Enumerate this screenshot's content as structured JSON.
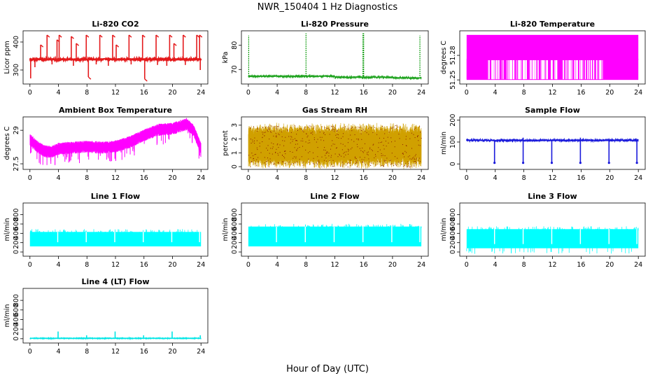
{
  "figure": {
    "title": "NWR_150404  1 Hz Diagnostics",
    "xlabel": "Hour of Day (UTC)"
  },
  "chart_data": [
    {
      "type": "line",
      "title": "Li-820 CO2",
      "ylabel": "Licor ppm",
      "color": "#e41a1c",
      "xlim": [
        0,
        24
      ],
      "xticks": [
        0,
        4,
        8,
        12,
        16,
        20,
        24
      ],
      "ylim": [
        250,
        440
      ],
      "yticks": [
        300,
        400
      ],
      "baseline": 338,
      "noise": 4,
      "spikes": [
        {
          "x": 1.5,
          "y": 390
        },
        {
          "x": 2.4,
          "y": 425
        },
        {
          "x": 3.8,
          "y": 408
        },
        {
          "x": 4.1,
          "y": 425
        },
        {
          "x": 5.8,
          "y": 420
        },
        {
          "x": 6.5,
          "y": 395
        },
        {
          "x": 7.9,
          "y": 425
        },
        {
          "x": 8.2,
          "y": 275
        },
        {
          "x": 9.8,
          "y": 425
        },
        {
          "x": 11.6,
          "y": 425
        },
        {
          "x": 12.1,
          "y": 390
        },
        {
          "x": 13.9,
          "y": 425
        },
        {
          "x": 15.8,
          "y": 425
        },
        {
          "x": 16.1,
          "y": 268
        },
        {
          "x": 17.7,
          "y": 425
        },
        {
          "x": 19.6,
          "y": 425
        },
        {
          "x": 20.2,
          "y": 395
        },
        {
          "x": 21.5,
          "y": 425
        },
        {
          "x": 23.4,
          "y": 425
        },
        {
          "x": 23.8,
          "y": 425
        }
      ],
      "dips": [
        {
          "x": 0.1,
          "y": 270
        },
        {
          "x": 0.7,
          "y": 310
        },
        {
          "x": 3.1,
          "y": 320
        },
        {
          "x": 6.1,
          "y": 315
        },
        {
          "x": 9.3,
          "y": 320
        },
        {
          "x": 11.0,
          "y": 315
        },
        {
          "x": 14.2,
          "y": 320
        },
        {
          "x": 17.9,
          "y": 318
        },
        {
          "x": 19.2,
          "y": 315
        },
        {
          "x": 21.8,
          "y": 318
        },
        {
          "x": 23.9,
          "y": 300
        }
      ]
    },
    {
      "type": "line",
      "title": "Li-820 Pressure",
      "ylabel": "kPa",
      "color": "#1fa31f",
      "xlim": [
        0,
        24
      ],
      "xticks": [
        0,
        4,
        8,
        12,
        16,
        20,
        24
      ],
      "ylim": [
        64,
        86
      ],
      "yticks": [
        70,
        80
      ],
      "baseline": 67.2,
      "noise": 0.25,
      "spikes": [
        {
          "x": 0.05,
          "y": 84
        },
        {
          "x": 8.0,
          "y": 85
        },
        {
          "x": 15.9,
          "y": 85
        },
        {
          "x": 16.0,
          "y": 85
        },
        {
          "x": 23.8,
          "y": 84
        }
      ],
      "dips": []
    },
    {
      "type": "line",
      "title": "Li-820 Temperature",
      "ylabel": "degrees C",
      "color": "#ff00ff",
      "xlim": [
        0,
        24
      ],
      "xticks": [
        0,
        4,
        8,
        12,
        16,
        20,
        24
      ],
      "ylim": [
        51.245,
        51.31
      ],
      "yticks": [
        51.25,
        51.28
      ],
      "levels": [
        51.25,
        51.275,
        51.305
      ],
      "band_high": [
        0,
        24
      ],
      "band_mid": [
        0,
        19.5
      ]
    },
    {
      "type": "line",
      "title": "Ambient Box Temperature",
      "ylabel": "degrees C",
      "color": "#ff00ff",
      "xlim": [
        0,
        24
      ],
      "xticks": [
        0,
        4,
        8,
        12,
        16,
        20,
        24
      ],
      "ylim": [
        27.25,
        29.6
      ],
      "yticks": [
        27.5,
        29.0
      ],
      "profile": [
        {
          "x": 0,
          "y": 28.6
        },
        {
          "x": 1,
          "y": 28.3
        },
        {
          "x": 2,
          "y": 28.1
        },
        {
          "x": 3,
          "y": 28.05
        },
        {
          "x": 4,
          "y": 28.2
        },
        {
          "x": 6,
          "y": 28.25
        },
        {
          "x": 8,
          "y": 28.3
        },
        {
          "x": 10,
          "y": 28.25
        },
        {
          "x": 12,
          "y": 28.3
        },
        {
          "x": 14,
          "y": 28.5
        },
        {
          "x": 16,
          "y": 28.8
        },
        {
          "x": 18,
          "y": 29.05
        },
        {
          "x": 20,
          "y": 29.1
        },
        {
          "x": 21,
          "y": 29.2
        },
        {
          "x": 22,
          "y": 29.3
        },
        {
          "x": 23,
          "y": 29.0
        },
        {
          "x": 24,
          "y": 28.2
        }
      ],
      "noise": 0.3
    },
    {
      "type": "line",
      "title": "Gas Stream RH",
      "ylabel": "percent",
      "color": "#e69500",
      "line_color": "#d0a000",
      "point_color": "#8a1a00",
      "xlim": [
        0,
        24
      ],
      "xticks": [
        0,
        4,
        8,
        12,
        16,
        20,
        24
      ],
      "ylim": [
        -0.2,
        3.6
      ],
      "yticks": [
        0,
        1,
        2,
        3
      ],
      "center": 1.5,
      "halfwidth": 1.6
    },
    {
      "type": "line",
      "title": "Sample Flow",
      "ylabel": "ml/min",
      "color": "#1a1adb",
      "xlim": [
        0,
        24
      ],
      "xticks": [
        0,
        4,
        8,
        12,
        16,
        20,
        24
      ],
      "ylim": [
        -25,
        215
      ],
      "yticks": [
        0,
        100,
        200
      ],
      "baseline": 108,
      "noise": 4,
      "dips": [
        {
          "x": 0.1,
          "y": 110
        },
        {
          "x": 3.9,
          "y": 5
        },
        {
          "x": 7.9,
          "y": 5
        },
        {
          "x": 11.9,
          "y": 5
        },
        {
          "x": 15.9,
          "y": 5
        },
        {
          "x": 19.9,
          "y": 5
        },
        {
          "x": 23.8,
          "y": 5
        }
      ],
      "spikes": [
        {
          "x": 7.9,
          "y": 120
        },
        {
          "x": 15.9,
          "y": 120
        }
      ]
    },
    {
      "type": "line",
      "title": "Line 1 Flow",
      "ylabel": "ml/min",
      "color": "#00ffff",
      "xlim": [
        0,
        24
      ],
      "xticks": [
        0,
        4,
        8,
        12,
        16,
        20,
        24
      ],
      "ylim": [
        -90,
        1050
      ],
      "yticks": [
        0,
        200,
        400,
        600,
        800
      ],
      "low": 120,
      "high": 430,
      "gaps": [
        3.9,
        7.9,
        11.9,
        15.9,
        19.9,
        23.8
      ]
    },
    {
      "type": "line",
      "title": "Line 2 Flow",
      "ylabel": "ml/min",
      "color": "#00ffff",
      "xlim": [
        0,
        24
      ],
      "xticks": [
        0,
        4,
        8,
        12,
        16,
        20,
        24
      ],
      "ylim": [
        -90,
        1050
      ],
      "yticks": [
        0,
        200,
        400,
        600,
        800
      ],
      "low": 120,
      "high": 545,
      "gaps": [
        3.9,
        7.9,
        11.9,
        15.9,
        19.9,
        23.8
      ]
    },
    {
      "type": "line",
      "title": "Line 3 Flow",
      "ylabel": "ml/min",
      "color": "#00ffff",
      "xlim": [
        0,
        24
      ],
      "xticks": [
        0,
        4,
        8,
        12,
        16,
        20,
        24
      ],
      "ylim": [
        -90,
        1050
      ],
      "yticks": [
        0,
        200,
        400,
        600,
        800
      ],
      "low": 80,
      "high": 490,
      "gaps": [
        3.9,
        7.9,
        11.9,
        15.9,
        19.9,
        23.8
      ]
    },
    {
      "type": "line",
      "title": "Line 4 (LT) Flow",
      "ylabel": "ml/min",
      "color": "#00e5e5",
      "xlim": [
        0,
        24
      ],
      "xticks": [
        0,
        4,
        8,
        12,
        16,
        20,
        24
      ],
      "ylim": [
        -90,
        1050
      ],
      "yticks": [
        0,
        200,
        400,
        600,
        800
      ],
      "baseline": 8,
      "noise": 4,
      "spikes": [
        {
          "x": 3.95,
          "y": 150
        },
        {
          "x": 7.95,
          "y": 70
        },
        {
          "x": 11.95,
          "y": 150
        },
        {
          "x": 15.95,
          "y": 70
        },
        {
          "x": 19.95,
          "y": 150
        },
        {
          "x": 23.9,
          "y": 70
        }
      ]
    }
  ]
}
